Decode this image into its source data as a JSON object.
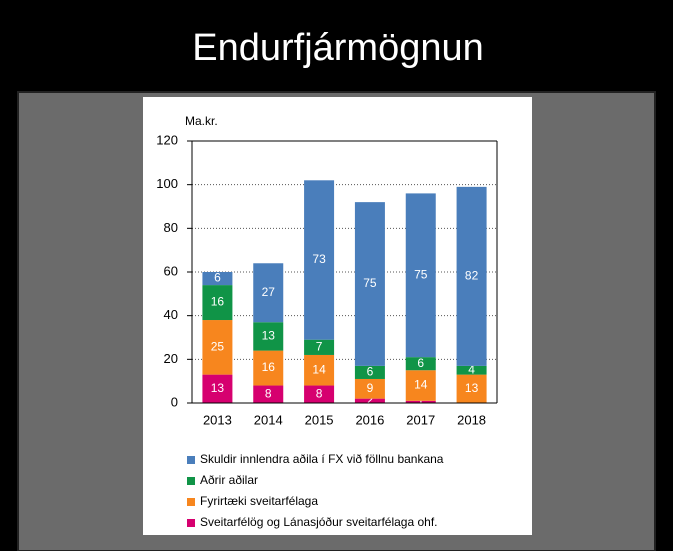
{
  "slide_title": "Endurfjármögnun",
  "chart_data": {
    "type": "stacked_bar",
    "y_label": "Ma.kr.",
    "categories": [
      "2013",
      "2014",
      "2015",
      "2016",
      "2017",
      "2018"
    ],
    "ylim": [
      0,
      120
    ],
    "yticks": [
      0,
      20,
      40,
      60,
      80,
      100,
      120
    ],
    "grid": true,
    "series": [
      {
        "name": "Sveitarfélög og Lánasjóður sveitarfélaga ohf.",
        "color": "#d6006f",
        "values": [
          13,
          8,
          8,
          2,
          1,
          0
        ]
      },
      {
        "name": "Fyrirtæki sveitarfélaga",
        "color": "#f7861e",
        "values": [
          25,
          16,
          14,
          9,
          14,
          13
        ]
      },
      {
        "name": "Aðrir aðilar",
        "color": "#109447",
        "values": [
          16,
          13,
          7,
          6,
          6,
          4
        ]
      },
      {
        "name": "Skuldir innlendra aðila í FX við föllnu bankana",
        "color": "#4a7ebb",
        "values": [
          6,
          27,
          73,
          75,
          75,
          82
        ]
      }
    ]
  }
}
